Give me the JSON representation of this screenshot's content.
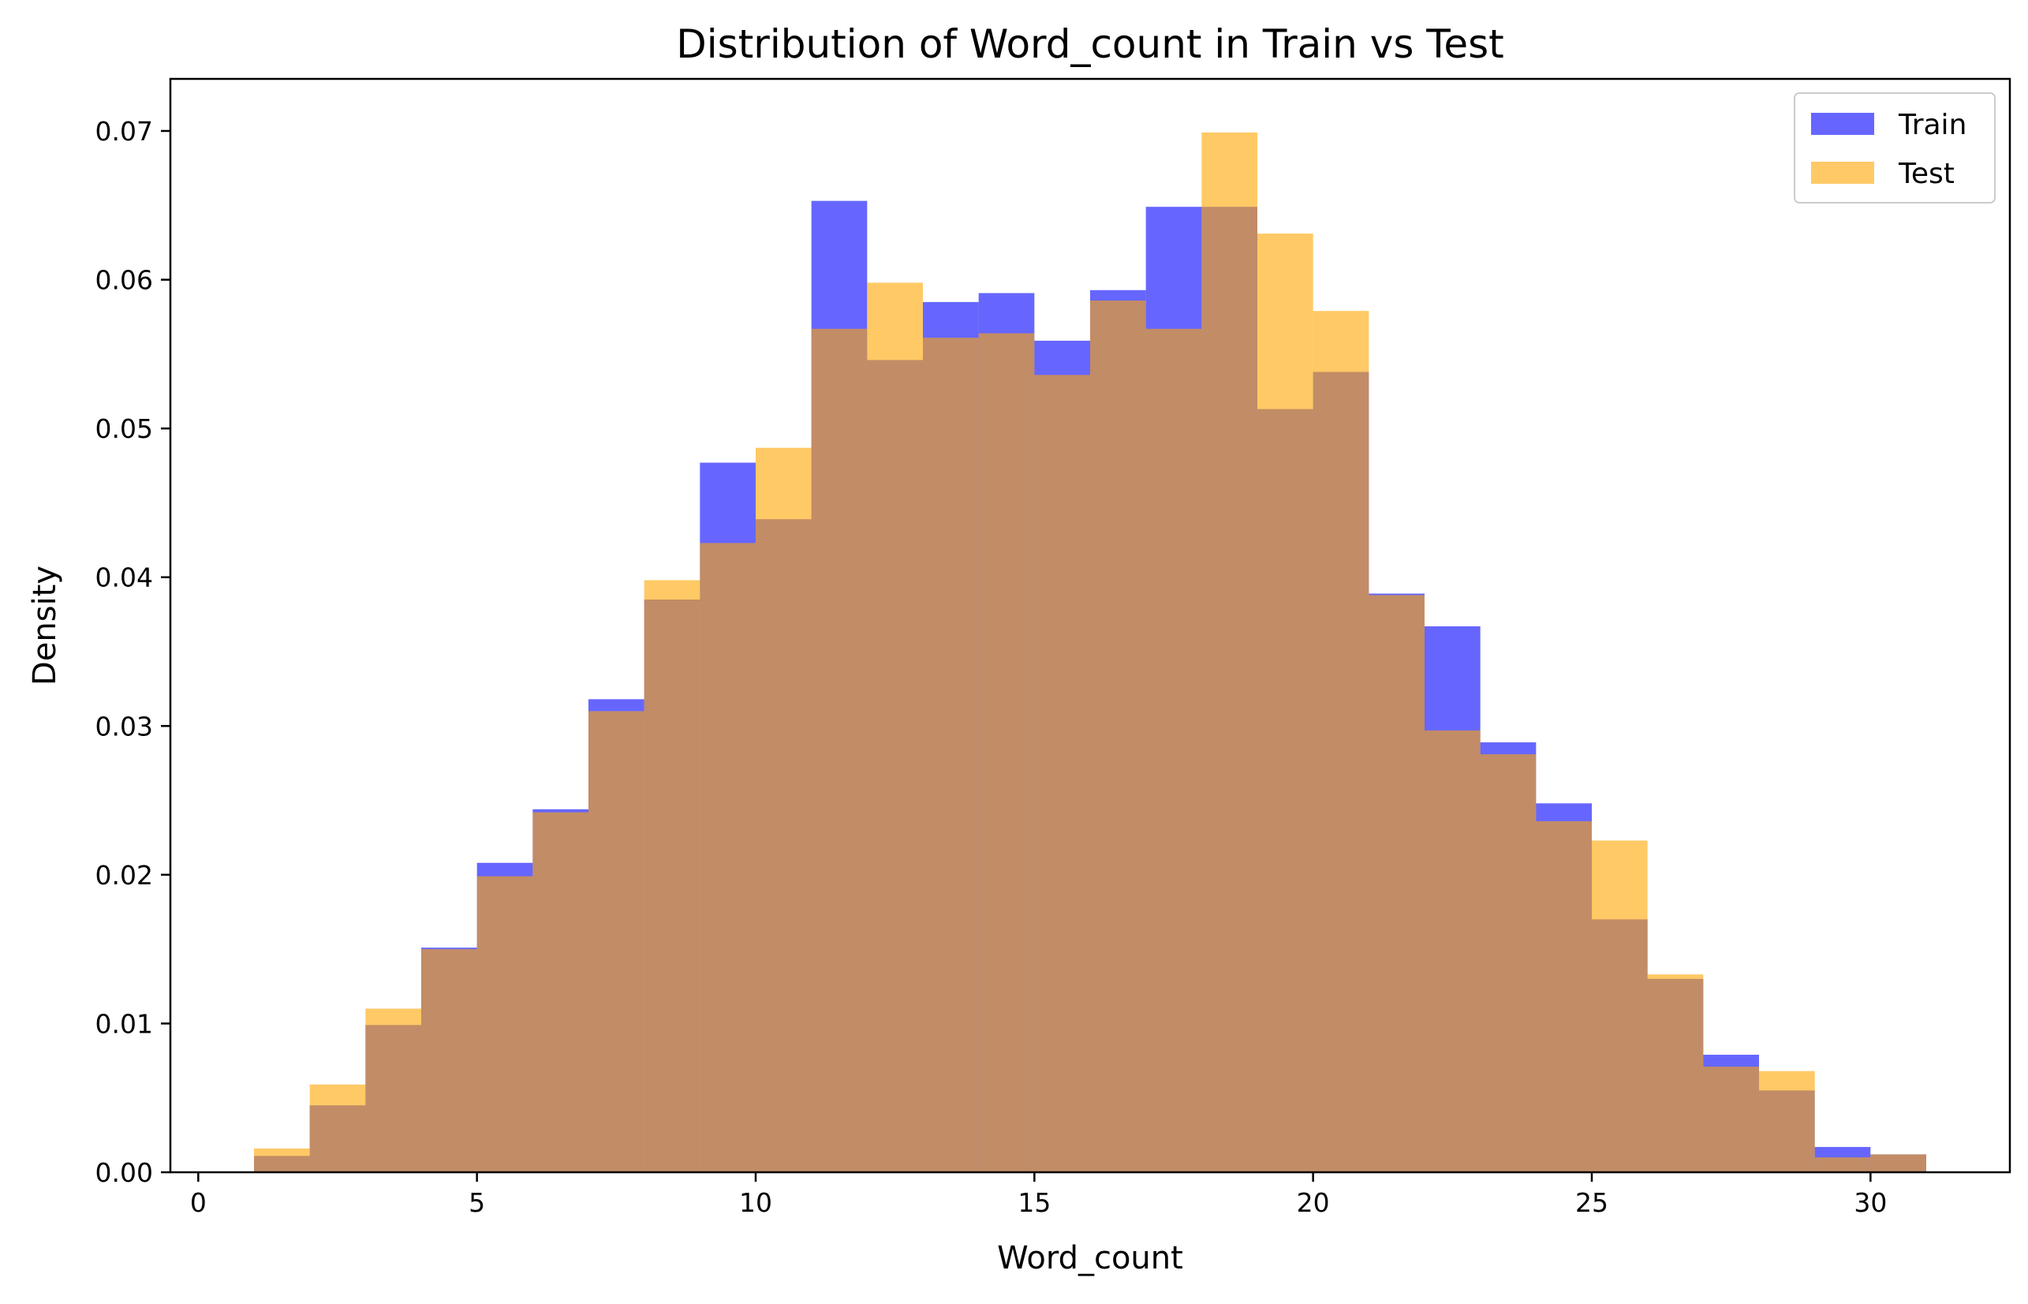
{
  "chart_data": {
    "type": "bar",
    "title": "Distribution of Word_count in Train vs Test",
    "xlabel": "Word_count",
    "ylabel": "Density",
    "xlim": [
      -0.5,
      32.5
    ],
    "ylim": [
      0,
      0.0735
    ],
    "xticks": [
      0,
      5,
      10,
      15,
      20,
      25,
      30
    ],
    "yticks": [
      0.0,
      0.01,
      0.02,
      0.03,
      0.04,
      0.05,
      0.06,
      0.07
    ],
    "ytick_labels": [
      "0.00",
      "0.01",
      "0.02",
      "0.03",
      "0.04",
      "0.05",
      "0.06",
      "0.07"
    ],
    "bin_edges": [
      1,
      2,
      3,
      4,
      5,
      6,
      7,
      8,
      9,
      10,
      11,
      12,
      13,
      14,
      15,
      16,
      17,
      18,
      19,
      20,
      21,
      22,
      23,
      24,
      25,
      26,
      27,
      28,
      29,
      30,
      31
    ],
    "series": [
      {
        "name": "Train",
        "color": "#0000ff",
        "alpha": 0.6,
        "values": [
          0.0011,
          0.0045,
          0.0099,
          0.0151,
          0.0208,
          0.0244,
          0.0318,
          0.0385,
          0.0477,
          0.0439,
          0.0653,
          0.0546,
          0.0585,
          0.0591,
          0.0559,
          0.0593,
          0.0649,
          0.0649,
          0.0513,
          0.0538,
          0.0389,
          0.0367,
          0.0289,
          0.0248,
          0.017,
          0.013,
          0.0079,
          0.0055,
          0.0017,
          0.0012
        ]
      },
      {
        "name": "Test",
        "color": "#ffa500",
        "alpha": 0.6,
        "values": [
          0.0016,
          0.0059,
          0.011,
          0.015,
          0.0199,
          0.0242,
          0.031,
          0.0398,
          0.0423,
          0.0487,
          0.0567,
          0.0598,
          0.0561,
          0.0564,
          0.0536,
          0.0586,
          0.0567,
          0.0699,
          0.0631,
          0.0579,
          0.0388,
          0.0297,
          0.0281,
          0.0236,
          0.0223,
          0.0133,
          0.0071,
          0.0068,
          0.001,
          0.0012
        ]
      }
    ],
    "legend_position": "top-right",
    "grid": false
  }
}
